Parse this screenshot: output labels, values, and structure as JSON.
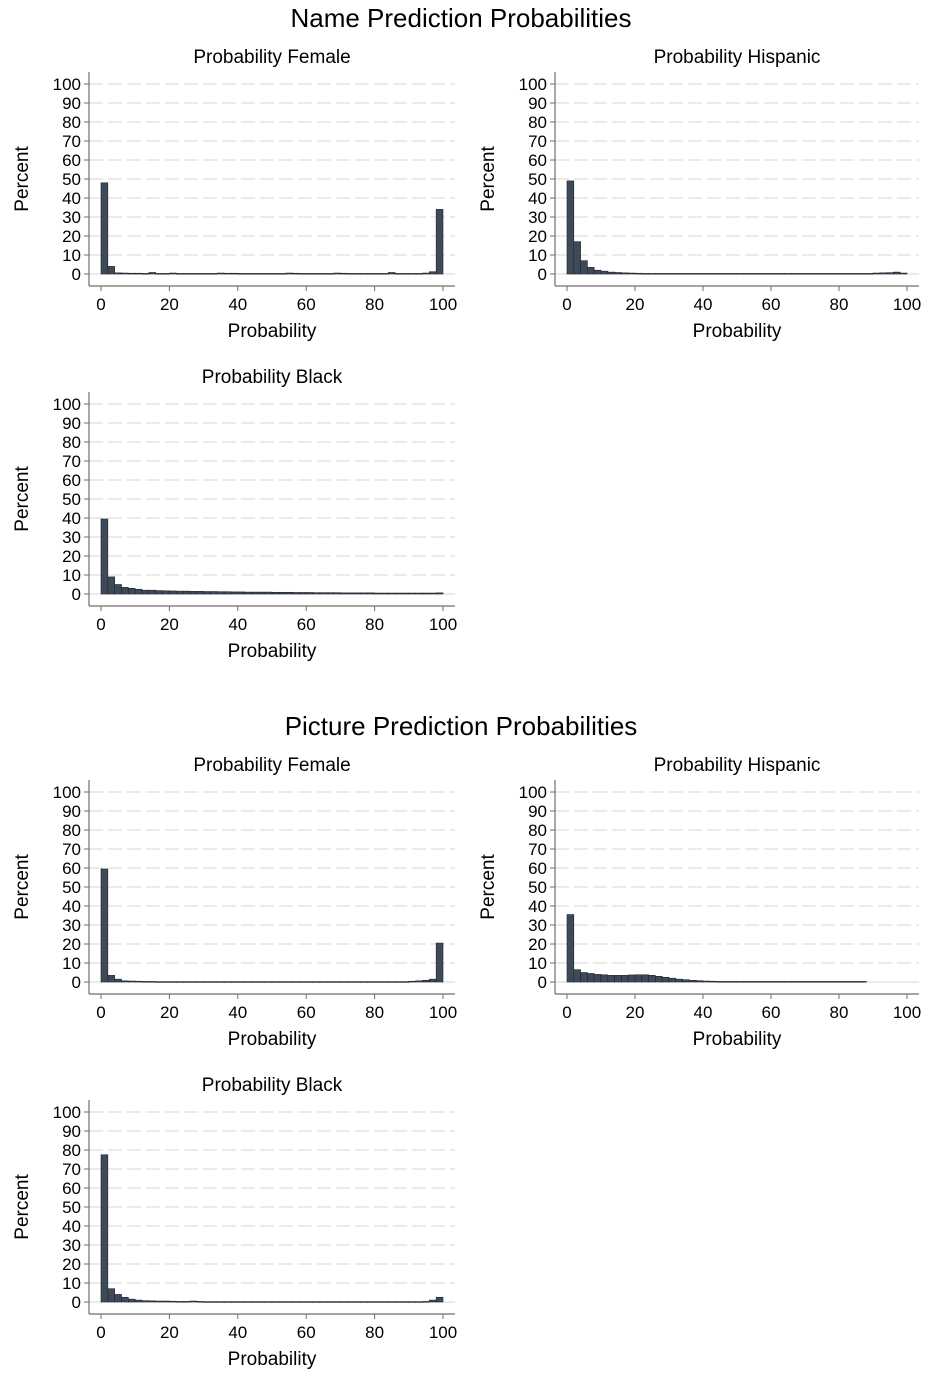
{
  "groups": [
    {
      "title": "Name Prediction Probabilities"
    },
    {
      "title": "Picture Prediction Probabilities"
    }
  ],
  "chart_data": [
    {
      "type": "bar",
      "group": 0,
      "title": "Probability Female",
      "xlabel": "Probability",
      "ylabel": "Percent",
      "xlim": [
        0,
        100
      ],
      "ylim": [
        0,
        100
      ],
      "xticks": [
        0,
        20,
        40,
        60,
        80,
        100
      ],
      "yticks": [
        0,
        10,
        20,
        30,
        40,
        50,
        60,
        70,
        80,
        90,
        100
      ],
      "grid": true,
      "bin_width": 2,
      "values": [
        48,
        4,
        0.6,
        0.5,
        0.4,
        0.4,
        0.3,
        0.8,
        0.3,
        0.3,
        0.5,
        0.3,
        0.3,
        0.3,
        0.3,
        0.3,
        0.3,
        0.5,
        0.4,
        0.4,
        0.3,
        0.3,
        0.3,
        0.3,
        0.3,
        0.3,
        0.3,
        0.5,
        0.4,
        0.3,
        0.3,
        0.3,
        0.3,
        0.3,
        0.5,
        0.4,
        0.3,
        0.3,
        0.3,
        0.3,
        0.3,
        0.3,
        0.8,
        0.3,
        0.3,
        0.3,
        0.3,
        0.5,
        1.2,
        34
      ]
    },
    {
      "type": "bar",
      "group": 0,
      "title": "Probability Hispanic",
      "xlabel": "Probability",
      "ylabel": "Percent",
      "xlim": [
        0,
        100
      ],
      "ylim": [
        0,
        100
      ],
      "xticks": [
        0,
        20,
        40,
        60,
        80,
        100
      ],
      "yticks": [
        0,
        10,
        20,
        30,
        40,
        50,
        60,
        70,
        80,
        90,
        100
      ],
      "grid": true,
      "bin_width": 2,
      "values": [
        49,
        17,
        7,
        3.5,
        2,
        1.5,
        1,
        0.8,
        0.6,
        0.5,
        0.4,
        0.3,
        0.3,
        0.3,
        0.3,
        0.3,
        0.3,
        0.3,
        0.3,
        0.3,
        0.3,
        0.3,
        0.3,
        0.3,
        0.3,
        0.3,
        0.3,
        0.3,
        0.3,
        0.3,
        0.3,
        0.3,
        0.3,
        0.3,
        0.3,
        0.3,
        0.3,
        0.3,
        0.3,
        0.3,
        0.3,
        0.3,
        0.3,
        0.3,
        0.3,
        0.5,
        0.6,
        0.7,
        1,
        0.5
      ]
    },
    {
      "type": "bar",
      "group": 0,
      "title": "Probability Black",
      "xlabel": "Probability",
      "ylabel": "Percent",
      "xlim": [
        0,
        100
      ],
      "ylim": [
        0,
        100
      ],
      "xticks": [
        0,
        20,
        40,
        60,
        80,
        100
      ],
      "yticks": [
        0,
        10,
        20,
        30,
        40,
        50,
        60,
        70,
        80,
        90,
        100
      ],
      "grid": true,
      "bin_width": 2,
      "values": [
        39.5,
        9,
        5,
        3.5,
        3,
        2.5,
        2,
        2,
        1.8,
        1.7,
        1.6,
        1.5,
        1.5,
        1.4,
        1.4,
        1.3,
        1.3,
        1.2,
        1.2,
        1.1,
        1.1,
        1,
        1,
        1,
        1,
        0.9,
        0.9,
        0.9,
        0.8,
        0.8,
        0.8,
        0.7,
        0.7,
        0.7,
        0.7,
        0.6,
        0.6,
        0.6,
        0.6,
        0.6,
        0.5,
        0.5,
        0.5,
        0.5,
        0.5,
        0.5,
        0.5,
        0.5,
        0.5,
        0.6
      ]
    },
    {
      "type": "bar",
      "group": 1,
      "title": "Probability Female",
      "xlabel": "Probability",
      "ylabel": "Percent",
      "xlim": [
        0,
        100
      ],
      "ylim": [
        0,
        100
      ],
      "xticks": [
        0,
        20,
        40,
        60,
        80,
        100
      ],
      "yticks": [
        0,
        10,
        20,
        30,
        40,
        50,
        60,
        70,
        80,
        90,
        100
      ],
      "grid": true,
      "bin_width": 2,
      "values": [
        59.5,
        3.5,
        1.5,
        0.6,
        0.5,
        0.4,
        0.3,
        0.3,
        0.2,
        0.2,
        0.2,
        0.2,
        0.2,
        0.2,
        0.2,
        0.2,
        0.2,
        0.2,
        0.2,
        0.2,
        0.2,
        0.2,
        0.2,
        0.2,
        0.2,
        0.2,
        0.2,
        0.2,
        0.2,
        0.2,
        0.2,
        0.2,
        0.2,
        0.2,
        0.2,
        0.2,
        0.2,
        0.2,
        0.2,
        0.2,
        0.2,
        0.2,
        0.2,
        0.2,
        0.2,
        0.4,
        0.6,
        0.9,
        1.5,
        20.5
      ]
    },
    {
      "type": "bar",
      "group": 1,
      "title": "Probability Hispanic",
      "xlabel": "Probability",
      "ylabel": "Percent",
      "xlim": [
        0,
        100
      ],
      "ylim": [
        0,
        100
      ],
      "xticks": [
        0,
        20,
        40,
        60,
        80,
        100
      ],
      "yticks": [
        0,
        10,
        20,
        30,
        40,
        50,
        60,
        70,
        80,
        90,
        100
      ],
      "grid": true,
      "bin_width": 2,
      "values": [
        35.5,
        6.5,
        5,
        4.5,
        4,
        3.8,
        3.5,
        3.5,
        3.5,
        3.7,
        3.8,
        3.8,
        3.5,
        3,
        2.5,
        2,
        1.5,
        1.2,
        0.9,
        0.7,
        0.5,
        0.4,
        0.3,
        0.3,
        0.3,
        0.3,
        0.3,
        0.3,
        0.3,
        0.3,
        0.3,
        0.3,
        0.3,
        0.3,
        0.3,
        0.3,
        0.3,
        0.3,
        0.3,
        0.3,
        0.3,
        0.3,
        0.3,
        0.3,
        0,
        0,
        0,
        0,
        0,
        0
      ]
    },
    {
      "type": "bar",
      "group": 1,
      "title": "Probability Black",
      "xlabel": "Probability",
      "ylabel": "Percent",
      "xlim": [
        0,
        100
      ],
      "ylim": [
        0,
        100
      ],
      "xticks": [
        0,
        20,
        40,
        60,
        80,
        100
      ],
      "yticks": [
        0,
        10,
        20,
        30,
        40,
        50,
        60,
        70,
        80,
        90,
        100
      ],
      "grid": true,
      "bin_width": 2,
      "values": [
        77.5,
        7,
        4,
        2.5,
        1.5,
        1,
        0.7,
        0.6,
        0.5,
        0.5,
        0.4,
        0.3,
        0.3,
        0.5,
        0.3,
        0.2,
        0.2,
        0.2,
        0.2,
        0.2,
        0.2,
        0.2,
        0.2,
        0.2,
        0.2,
        0.2,
        0.2,
        0.2,
        0.2,
        0.2,
        0.2,
        0.2,
        0.2,
        0.2,
        0.2,
        0.2,
        0.2,
        0.2,
        0.2,
        0.2,
        0.2,
        0.2,
        0.2,
        0.2,
        0.2,
        0.2,
        0.2,
        0.3,
        1,
        2.5
      ]
    }
  ],
  "colors": {
    "bar_fill": "#3e4a58",
    "bar_stroke": "#1d2530",
    "grid": "#d6d6d6",
    "axis": "#6e6e6e"
  }
}
